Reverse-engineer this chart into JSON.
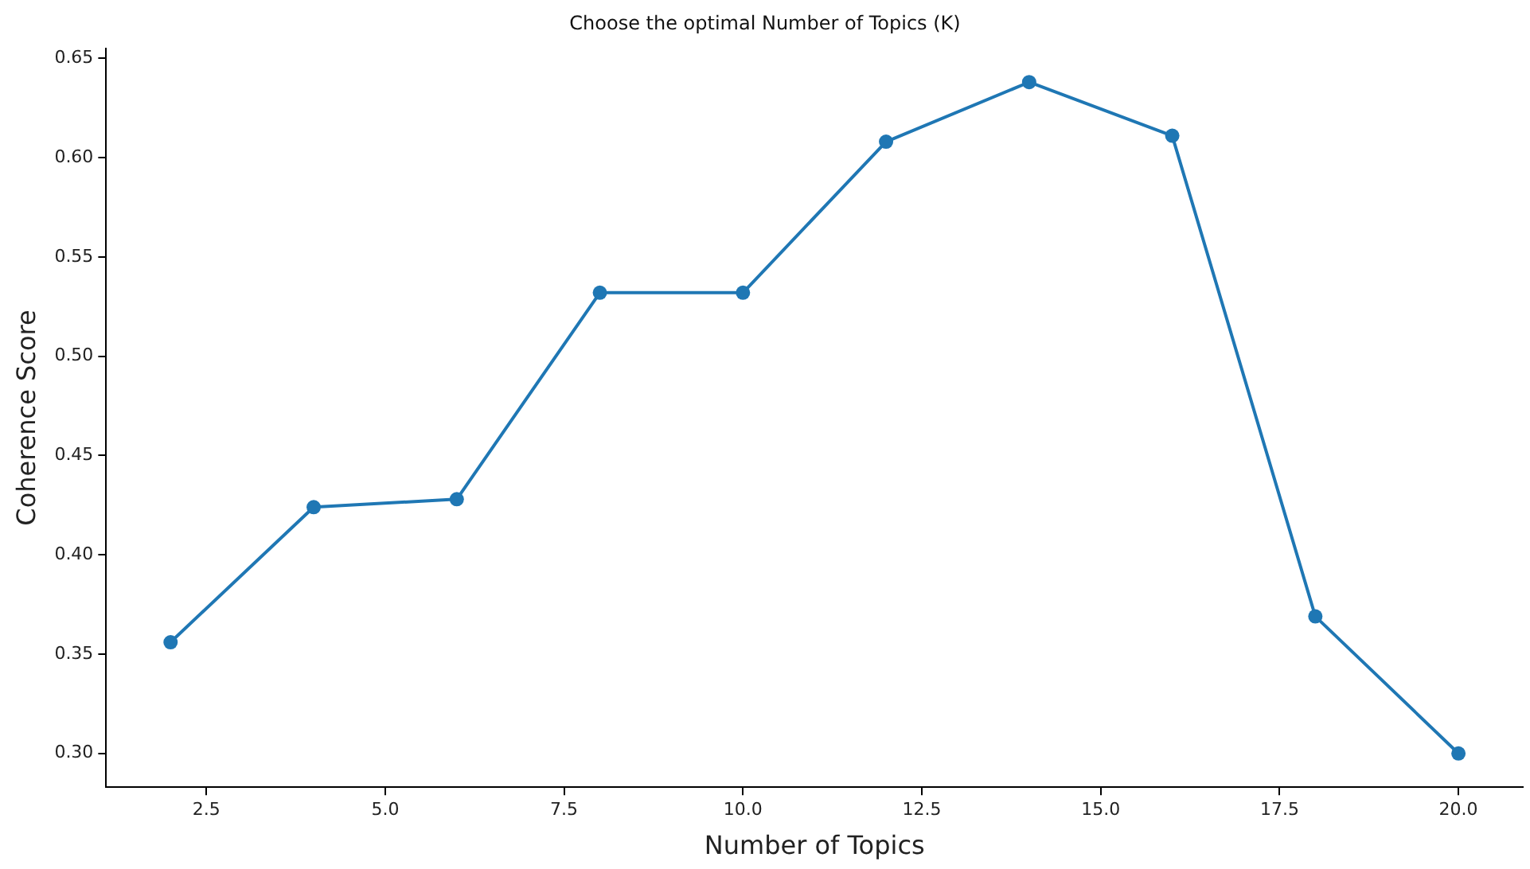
{
  "chart_data": {
    "type": "line",
    "title": "Choose the optimal Number of Topics (K)",
    "xlabel": "Number of Topics",
    "ylabel": "Coherence Score",
    "x": [
      2,
      4,
      6,
      8,
      10,
      12,
      14,
      16,
      18,
      20
    ],
    "series": [
      {
        "color": "#1f77b4",
        "values": [
          0.356,
          0.424,
          0.428,
          0.532,
          0.532,
          0.608,
          0.638,
          0.611,
          0.369,
          0.3
        ]
      }
    ],
    "xlim": [
      1.1,
      20.9
    ],
    "xticks": [
      {
        "value": 2.5,
        "label": "2.5"
      },
      {
        "value": 5,
        "label": "5.0"
      },
      {
        "value": 7.5,
        "label": "7.5"
      },
      {
        "value": 10,
        "label": "10.0"
      },
      {
        "value": 12.5,
        "label": "12.5"
      },
      {
        "value": 15,
        "label": "15.0"
      },
      {
        "value": 17.5,
        "label": "17.5"
      },
      {
        "value": 20,
        "label": "20.0"
      }
    ],
    "ylim": [
      0.283,
      0.655
    ],
    "yticks": [
      {
        "value": 0.3,
        "label": "0.30"
      },
      {
        "value": 0.35,
        "label": "0.35"
      },
      {
        "value": 0.4,
        "label": "0.40"
      },
      {
        "value": 0.45,
        "label": "0.45"
      },
      {
        "value": 0.5,
        "label": "0.50"
      },
      {
        "value": 0.55,
        "label": "0.55"
      },
      {
        "value": 0.6,
        "label": "0.60"
      },
      {
        "value": 0.65,
        "label": "0.65"
      }
    ],
    "grid": false,
    "legend": false,
    "marker": "circle",
    "line_style": "solid"
  }
}
